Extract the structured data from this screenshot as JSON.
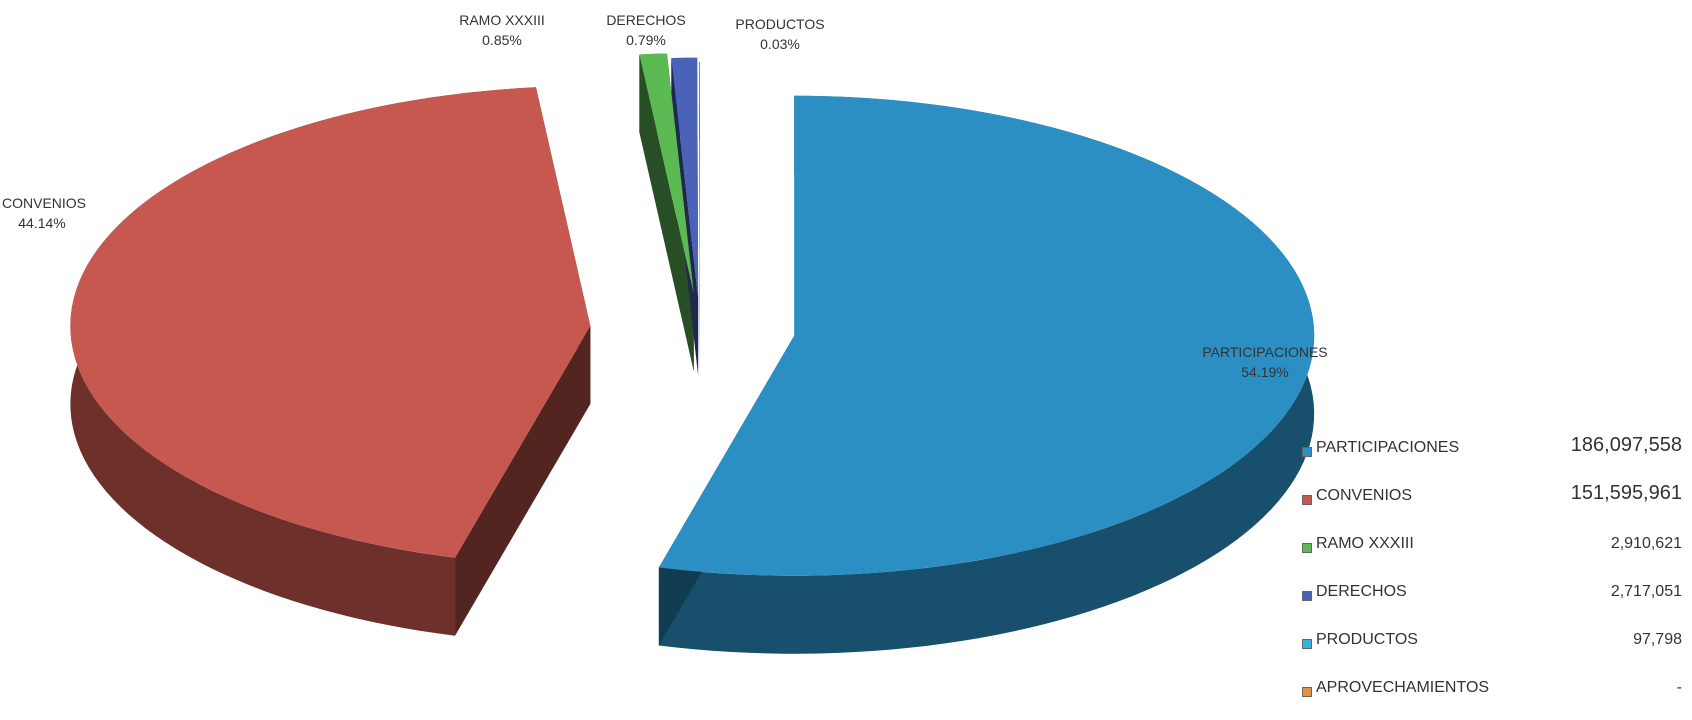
{
  "chart_data": {
    "type": "pie",
    "style": "3d-exploded",
    "slices": [
      {
        "name": "PARTICIPACIONES",
        "value": 186097558,
        "value_label": "186,097,558",
        "percent": 54.19,
        "percent_label": "54.19%",
        "color": "#2b8fc4"
      },
      {
        "name": "CONVENIOS",
        "value": 151595961,
        "value_label": "151,595,961",
        "percent": 44.14,
        "percent_label": "44.14%",
        "color": "#c6584f"
      },
      {
        "name": "RAMO XXXIII",
        "value": 2910621,
        "value_label": "2,910,621",
        "percent": 0.85,
        "percent_label": "0.85%",
        "color": "#5cba55"
      },
      {
        "name": "DERECHOS",
        "value": 2717051,
        "value_label": "2,717,051",
        "percent": 0.79,
        "percent_label": "0.79%",
        "color": "#4a62b8"
      },
      {
        "name": "PRODUCTOS",
        "value": 97798,
        "value_label": "97,798",
        "percent": 0.03,
        "percent_label": "0.03%",
        "color": "#33b4d8"
      },
      {
        "name": "APROVECHAMIENTOS",
        "value": 0,
        "value_label": "-",
        "percent": 0,
        "percent_label": "",
        "color": "#e0963c"
      }
    ],
    "legend_placement": "bottom-right"
  }
}
